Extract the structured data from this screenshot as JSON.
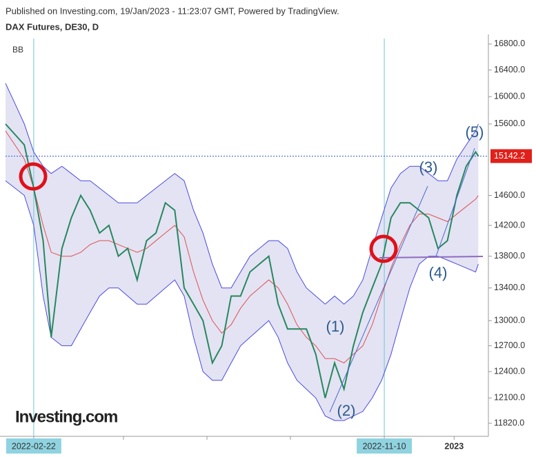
{
  "header": {
    "published": "Published on Investing.com, 19/Jan/2023 - 11:23:07 GMT, Powered by TradingView.",
    "instrument": "DAX Futures, DE30, D"
  },
  "chart_data": {
    "type": "line",
    "indicator": "BB",
    "logo": "Investing.com",
    "log_scale": true,
    "x": [
      "2022-02-01",
      "2022-02-08",
      "2022-02-15",
      "2022-02-22",
      "2022-03-01",
      "2022-03-07",
      "2022-03-15",
      "2022-03-22",
      "2022-03-29",
      "2022-04-05",
      "2022-04-12",
      "2022-04-19",
      "2022-04-26",
      "2022-05-03",
      "2022-05-10",
      "2022-05-17",
      "2022-05-24",
      "2022-05-31",
      "2022-06-07",
      "2022-06-14",
      "2022-06-21",
      "2022-06-28",
      "2022-07-05",
      "2022-07-12",
      "2022-07-19",
      "2022-07-26",
      "2022-08-02",
      "2022-08-09",
      "2022-08-16",
      "2022-08-23",
      "2022-08-30",
      "2022-09-06",
      "2022-09-13",
      "2022-09-20",
      "2022-09-27",
      "2022-10-04",
      "2022-10-11",
      "2022-10-18",
      "2022-10-25",
      "2022-11-01",
      "2022-11-08",
      "2022-11-15",
      "2022-11-22",
      "2022-11-29",
      "2022-12-06",
      "2022-12-13",
      "2022-12-20",
      "2022-12-27",
      "2023-01-03",
      "2023-01-10",
      "2023-01-17",
      "2023-01-19"
    ],
    "series": [
      {
        "name": "DAX Futures",
        "color": "#26875e",
        "values": [
          15600,
          15450,
          15300,
          14700,
          14000,
          12800,
          13900,
          14300,
          14600,
          14400,
          14100,
          14200,
          13800,
          13900,
          13500,
          14000,
          14100,
          14500,
          14400,
          13400,
          13200,
          13000,
          12500,
          12700,
          13300,
          13300,
          13600,
          13700,
          13800,
          13200,
          12900,
          12900,
          12900,
          12600,
          12100,
          12500,
          12200,
          12700,
          13100,
          13400,
          13700,
          14300,
          14500,
          14500,
          14400,
          14300,
          13900,
          14000,
          14600,
          15000,
          15200,
          15142.2
        ]
      },
      {
        "name": "BB upper",
        "color": "#4a4ae0",
        "values": [
          16200,
          15900,
          15600,
          15200,
          15000,
          14900,
          15000,
          14900,
          14800,
          14800,
          14700,
          14600,
          14500,
          14500,
          14500,
          14600,
          14700,
          14800,
          14900,
          14800,
          14400,
          14100,
          13700,
          13400,
          13400,
          13600,
          13800,
          13900,
          14000,
          14000,
          13900,
          13600,
          13400,
          13300,
          13200,
          13300,
          13200,
          13300,
          13500,
          13900,
          14300,
          14700,
          14900,
          15000,
          15000,
          14900,
          14800,
          14800,
          15100,
          15300,
          15500,
          15600
        ]
      },
      {
        "name": "BB basis",
        "color": "#e05050",
        "values": [
          15500,
          15300,
          15100,
          14700,
          14200,
          13850,
          13800,
          13800,
          13850,
          13950,
          14000,
          14000,
          13950,
          13900,
          13850,
          13900,
          14000,
          14100,
          14200,
          14050,
          13600,
          13250,
          13000,
          12850,
          12950,
          13150,
          13300,
          13400,
          13500,
          13400,
          13200,
          12950,
          12800,
          12700,
          12550,
          12550,
          12500,
          12600,
          12700,
          12950,
          13300,
          13650,
          13950,
          14200,
          14350,
          14350,
          14300,
          14250,
          14350,
          14450,
          14550,
          14600
        ]
      },
      {
        "name": "BB lower",
        "color": "#4a4ae0",
        "values": [
          14800,
          14700,
          14600,
          14200,
          13300,
          12800,
          12700,
          12700,
          12900,
          13100,
          13300,
          13400,
          13400,
          13300,
          13200,
          13200,
          13300,
          13400,
          13500,
          13300,
          12800,
          12400,
          12300,
          12300,
          12500,
          12700,
          12800,
          12900,
          13000,
          12800,
          12500,
          12300,
          12200,
          12100,
          11900,
          11850,
          11850,
          11900,
          11950,
          12100,
          12300,
          12600,
          13000,
          13400,
          13700,
          13800,
          13800,
          13750,
          13700,
          13650,
          13600,
          13700
        ]
      }
    ],
    "band_fill": "#e3e3f3",
    "last_price": {
      "value": 15142.2,
      "label": "15142.2"
    },
    "waves": [
      "(1)",
      "(2)",
      "(3)",
      "(4)",
      "(5)"
    ],
    "xlim": [
      "2022-02-01",
      "2023-01-26"
    ],
    "xticks": [
      "2022-02-22",
      "2022-11-10",
      {
        "value": "2023-01-01",
        "label": "2023"
      }
    ],
    "ylim": [
      11700,
      16950
    ],
    "yticks": [
      {
        "value": 16800,
        "label": "16800.0"
      },
      {
        "value": 16400,
        "label": "16400.0"
      },
      {
        "value": 16000,
        "label": "16000.0"
      },
      {
        "value": 15600,
        "label": "15600.0"
      },
      {
        "value": 14600,
        "label": "14600.0"
      },
      {
        "value": 14200,
        "label": "14200.0"
      },
      {
        "value": 13800,
        "label": "13800.0"
      },
      {
        "value": 13400,
        "label": "13400.0"
      },
      {
        "value": 13000,
        "label": "13000.0"
      },
      {
        "value": 12700,
        "label": "12700.0"
      },
      {
        "value": 12400,
        "label": "12400.0"
      },
      {
        "value": 12100,
        "label": "12100.0"
      },
      {
        "value": 11820,
        "label": "11820.0"
      }
    ]
  }
}
